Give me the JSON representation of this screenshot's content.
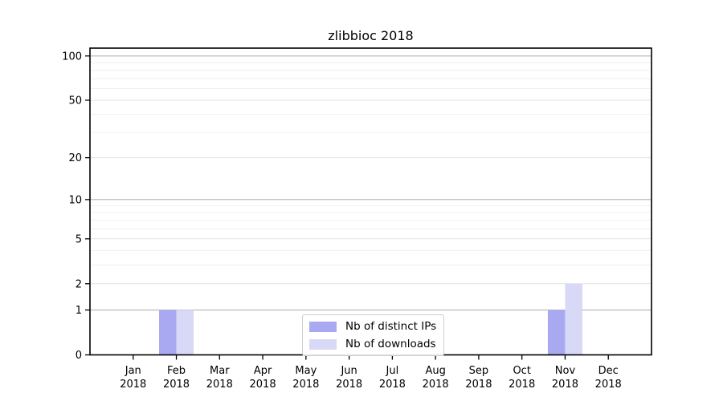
{
  "title": "zlibbioc 2018",
  "colors": {
    "distinct_ips_bar": "#a9a9f2",
    "downloads_bar": "#d8d8f7",
    "axis": "#000000",
    "grid_decade": "#b3b3b3",
    "grid_major": "#e2e2e2",
    "grid_minor": "#f0f0f0",
    "legend_border": "#cccccc"
  },
  "legend": {
    "items": [
      {
        "label": "Nb of distinct IPs",
        "color": "#a9a9f2"
      },
      {
        "label": "Nb of downloads",
        "color": "#d8d8f7"
      }
    ]
  },
  "chart_data": {
    "type": "bar",
    "title": "zlibbioc 2018",
    "xlabel": "",
    "ylabel": "",
    "categories": [
      "Jan 2018",
      "Feb 2018",
      "Mar 2018",
      "Apr 2018",
      "May 2018",
      "Jun 2018",
      "Jul 2018",
      "Aug 2018",
      "Sep 2018",
      "Oct 2018",
      "Nov 2018",
      "Dec 2018"
    ],
    "x_tick_labels": [
      [
        "Jan",
        "2018"
      ],
      [
        "Feb",
        "2018"
      ],
      [
        "Mar",
        "2018"
      ],
      [
        "Apr",
        "2018"
      ],
      [
        "May",
        "2018"
      ],
      [
        "Jun",
        "2018"
      ],
      [
        "Jul",
        "2018"
      ],
      [
        "Aug",
        "2018"
      ],
      [
        "Sep",
        "2018"
      ],
      [
        "Oct",
        "2018"
      ],
      [
        "Nov",
        "2018"
      ],
      [
        "Dec",
        "2018"
      ]
    ],
    "series": [
      {
        "name": "Nb of distinct IPs",
        "color": "#a9a9f2",
        "values": [
          0,
          1,
          0,
          0,
          0,
          0,
          0,
          0,
          0,
          0,
          1,
          0
        ]
      },
      {
        "name": "Nb of downloads",
        "color": "#d8d8f7",
        "values": [
          0,
          1,
          0,
          0,
          0,
          0,
          0,
          0,
          0,
          0,
          2,
          0
        ]
      }
    ],
    "y_scale": "log1p",
    "ylim": [
      0,
      113
    ],
    "y_major_ticks": [
      0,
      1,
      2,
      5,
      10,
      20,
      50,
      100
    ],
    "y_decade_gridlines": [
      1,
      10,
      100
    ],
    "y_other_major_gridlines": [
      2,
      5,
      20,
      50
    ],
    "y_minor_gridlines": [
      3,
      4,
      6,
      7,
      8,
      9,
      30,
      40,
      60,
      70,
      80,
      90
    ],
    "grid": true,
    "legend_position": "lower center"
  }
}
